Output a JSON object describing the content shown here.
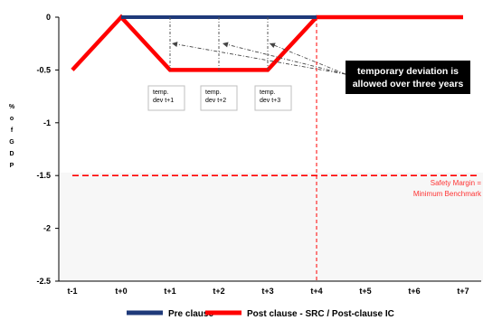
{
  "chart_data": {
    "type": "line",
    "categories": [
      "t-1",
      "t+0",
      "t+1",
      "t+2",
      "t+3",
      "t+4",
      "t+5",
      "t+6",
      "t+7"
    ],
    "ylabel": "% of GDP",
    "ylim": [
      -2.5,
      0
    ],
    "yticks": [
      "0",
      "-0.5",
      "-1",
      "-1.5",
      "-2",
      "-2.5"
    ],
    "grid": false,
    "legend_position": "bottom",
    "series": [
      {
        "name": "Pre clause",
        "color": "#1f3a7a",
        "values": [
          null,
          0,
          0,
          0,
          0,
          0,
          null,
          null,
          null
        ]
      },
      {
        "name": "Post clause - SRC / Post-clause IC",
        "color": "#ff0000",
        "values": [
          -0.5,
          0,
          -0.5,
          -0.5,
          -0.5,
          0,
          0,
          0,
          0
        ]
      }
    ],
    "reference_line": {
      "y": -1.5,
      "color": "#ff0000",
      "style": "dashed"
    },
    "safety_label": [
      "Safety Margin =",
      "Minimum Benchmark"
    ],
    "vertical_marker": {
      "x": "t+4",
      "color": "#ff0000",
      "style": "dashed"
    },
    "annotations": [
      {
        "lines": [
          "temp.",
          "dev t+1"
        ]
      },
      {
        "lines": [
          "temp.",
          "dev t+2"
        ]
      },
      {
        "lines": [
          "temp.",
          "dev t+3"
        ]
      }
    ],
    "callout": [
      "temporary deviation is",
      "allowed over three years"
    ]
  }
}
